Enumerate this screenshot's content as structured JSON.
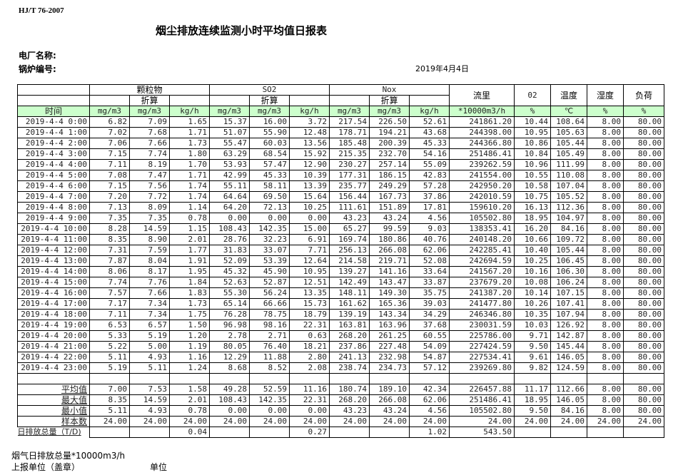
{
  "header": {
    "standard": "HJ/T  76-2007",
    "title": "烟尘排放连续监测小时平均值日报表",
    "plant_label": "电厂名称:",
    "boiler_label": "锅炉编号:",
    "date": "2019年4月4日"
  },
  "table": {
    "groups": [
      "颗粒物",
      "SO2",
      "Nox"
    ],
    "converted_label": "折算",
    "flow_label": "流里",
    "o2_label": "02",
    "temp_label": "温度",
    "humidity_label": "湿度",
    "load_label": "负荷",
    "time_label": "时间",
    "units": [
      "mg/m3",
      "mg/m3",
      "kg/h",
      "mg/m3",
      "mg/m3",
      "kg/h",
      "mg/m3",
      "mg/m3",
      "kg/h",
      "*10000m3/h",
      "%",
      "℃",
      "%",
      "%"
    ],
    "rows": [
      [
        "2019-4-4 0:00",
        "6.82",
        "7.09",
        "1.65",
        "15.37",
        "16.00",
        "3.72",
        "217.54",
        "226.50",
        "52.61",
        "241861.20",
        "10.44",
        "108.64",
        "8.00",
        "80.00"
      ],
      [
        "2019-4-4 1:00",
        "7.02",
        "7.68",
        "1.71",
        "51.07",
        "55.90",
        "12.48",
        "178.71",
        "194.21",
        "43.68",
        "244398.00",
        "10.95",
        "105.63",
        "8.00",
        "80.00"
      ],
      [
        "2019-4-4 2:00",
        "7.06",
        "7.66",
        "1.73",
        "55.47",
        "60.03",
        "13.56",
        "185.48",
        "200.39",
        "45.33",
        "244366.80",
        "10.86",
        "105.44",
        "8.00",
        "80.00"
      ],
      [
        "2019-4-4 3:00",
        "7.15",
        "7.74",
        "1.80",
        "63.29",
        "68.54",
        "15.92",
        "215.35",
        "232.70",
        "54.16",
        "251486.41",
        "10.84",
        "105.49",
        "8.00",
        "80.00"
      ],
      [
        "2019-4-4 4:00",
        "7.11",
        "8.19",
        "1.70",
        "53.93",
        "57.47",
        "12.90",
        "230.27",
        "257.14",
        "55.09",
        "239262.59",
        "10.96",
        "111.99",
        "8.00",
        "80.00"
      ],
      [
        "2019-4-4 5:00",
        "7.08",
        "7.47",
        "1.71",
        "42.99",
        "45.33",
        "10.39",
        "177.31",
        "186.15",
        "42.83",
        "241554.00",
        "10.55",
        "110.08",
        "8.00",
        "80.00"
      ],
      [
        "2019-4-4 6:00",
        "7.15",
        "7.56",
        "1.74",
        "55.11",
        "58.11",
        "13.39",
        "235.77",
        "249.29",
        "57.28",
        "242950.20",
        "10.58",
        "107.04",
        "8.00",
        "80.00"
      ],
      [
        "2019-4-4 7:00",
        "7.20",
        "7.72",
        "1.74",
        "64.64",
        "69.50",
        "15.64",
        "156.44",
        "167.73",
        "37.86",
        "242010.59",
        "10.75",
        "105.52",
        "8.00",
        "80.00"
      ],
      [
        "2019-4-4 8:00",
        "7.13",
        "8.09",
        "1.14",
        "64.20",
        "72.13",
        "10.25",
        "111.61",
        "151.89",
        "17.81",
        "159610.20",
        "16.13",
        "112.36",
        "8.00",
        "80.00"
      ],
      [
        "2019-4-4 9:00",
        "7.35",
        "7.35",
        "0.78",
        "0.00",
        "0.00",
        "0.00",
        "43.23",
        "43.24",
        "4.56",
        "105502.80",
        "18.95",
        "104.97",
        "8.00",
        "80.00"
      ],
      [
        "2019-4-4 10:00",
        "8.28",
        "14.59",
        "1.15",
        "108.43",
        "142.35",
        "15.00",
        "65.27",
        "99.59",
        "9.03",
        "138353.41",
        "16.20",
        "84.16",
        "8.00",
        "80.00"
      ],
      [
        "2019-4-4 11:00",
        "8.35",
        "8.90",
        "2.01",
        "28.76",
        "32.23",
        "6.91",
        "169.74",
        "180.86",
        "40.76",
        "240148.20",
        "10.66",
        "109.72",
        "8.00",
        "80.00"
      ],
      [
        "2019-4-4 12:00",
        "7.31",
        "7.59",
        "1.77",
        "31.83",
        "33.07",
        "7.71",
        "256.13",
        "266.08",
        "62.06",
        "242285.41",
        "10.40",
        "105.44",
        "8.00",
        "80.00"
      ],
      [
        "2019-4-4 13:00",
        "7.87",
        "8.04",
        "1.91",
        "52.09",
        "53.39",
        "12.64",
        "214.58",
        "219.71",
        "52.08",
        "242694.59",
        "10.25",
        "106.45",
        "8.00",
        "80.00"
      ],
      [
        "2019-4-4 14:00",
        "8.06",
        "8.17",
        "1.95",
        "45.32",
        "45.90",
        "10.95",
        "139.27",
        "141.16",
        "33.64",
        "241567.20",
        "10.16",
        "106.30",
        "8.00",
        "80.00"
      ],
      [
        "2019-4-4 15:00",
        "7.74",
        "7.76",
        "1.84",
        "52.63",
        "52.87",
        "12.51",
        "142.49",
        "143.47",
        "33.87",
        "237679.20",
        "10.08",
        "106.24",
        "8.00",
        "80.00"
      ],
      [
        "2019-4-4 16:00",
        "7.57",
        "7.66",
        "1.83",
        "55.30",
        "56.24",
        "13.35",
        "148.11",
        "149.30",
        "35.75",
        "241387.20",
        "10.14",
        "107.15",
        "8.00",
        "80.00"
      ],
      [
        "2019-4-4 17:00",
        "7.17",
        "7.34",
        "1.73",
        "65.14",
        "66.66",
        "15.73",
        "161.62",
        "165.36",
        "39.03",
        "241477.80",
        "10.26",
        "107.41",
        "8.00",
        "80.00"
      ],
      [
        "2019-4-4 18:00",
        "7.11",
        "7.34",
        "1.75",
        "76.28",
        "78.75",
        "18.79",
        "139.19",
        "143.34",
        "34.29",
        "246346.80",
        "10.35",
        "107.94",
        "8.00",
        "80.00"
      ],
      [
        "2019-4-4 19:00",
        "6.53",
        "6.57",
        "1.50",
        "96.98",
        "98.16",
        "22.31",
        "163.81",
        "163.96",
        "37.68",
        "230031.59",
        "10.03",
        "126.92",
        "8.00",
        "80.00"
      ],
      [
        "2019-4-4 20:00",
        "5.33",
        "5.19",
        "1.20",
        "2.78",
        "2.71",
        "0.63",
        "268.20",
        "261.25",
        "60.55",
        "225786.00",
        "9.71",
        "142.87",
        "8.00",
        "80.00"
      ],
      [
        "2019-4-4 21:00",
        "5.22",
        "5.00",
        "1.19",
        "80.05",
        "76.40",
        "18.21",
        "237.86",
        "227.48",
        "54.09",
        "227424.59",
        "9.50",
        "145.44",
        "8.00",
        "80.00"
      ],
      [
        "2019-4-4 22:00",
        "5.11",
        "4.93",
        "1.16",
        "12.29",
        "11.88",
        "2.80",
        "241.13",
        "232.98",
        "54.87",
        "227534.41",
        "9.61",
        "146.05",
        "8.00",
        "80.00"
      ],
      [
        "2019-4-4 23:00",
        "5.19",
        "5.11",
        "1.24",
        "8.68",
        "8.52",
        "2.08",
        "238.74",
        "234.73",
        "57.12",
        "239269.80",
        "9.82",
        "124.59",
        "8.00",
        "80.00"
      ]
    ],
    "summary": [
      [
        "平均值",
        "7.00",
        "7.53",
        "1.58",
        "49.28",
        "52.59",
        "11.16",
        "180.74",
        "189.10",
        "42.34",
        "226457.88",
        "11.17",
        "112.66",
        "8.00",
        "80.00"
      ],
      [
        "最大值",
        "8.35",
        "14.59",
        "2.01",
        "108.43",
        "142.35",
        "22.31",
        "268.20",
        "266.08",
        "62.06",
        "251486.41",
        "18.95",
        "146.05",
        "8.00",
        "80.00"
      ],
      [
        "最小值",
        "5.11",
        "4.93",
        "0.78",
        "0.00",
        "0.00",
        "0.00",
        "43.23",
        "43.24",
        "4.56",
        "105502.80",
        "9.50",
        "84.16",
        "8.00",
        "80.00"
      ],
      [
        "样本数",
        "24.00",
        "24.00",
        "24.00",
        "24.00",
        "24.00",
        "24.00",
        "24.00",
        "24.00",
        "24.00",
        "24.00",
        "24.00",
        "24.00",
        "24.00",
        "24.00"
      ]
    ],
    "total": [
      "日排放总量（T/D)",
      "",
      "",
      "0.04",
      "",
      "",
      "0.27",
      "",
      "",
      "1.02",
      "543.50",
      "",
      "",
      "",
      ""
    ]
  },
  "footer": {
    "flue_gas_total": "烟气日排放总量*10000m3/h",
    "reporting_unit": "上报单位（盖章）",
    "unit": "单位"
  }
}
